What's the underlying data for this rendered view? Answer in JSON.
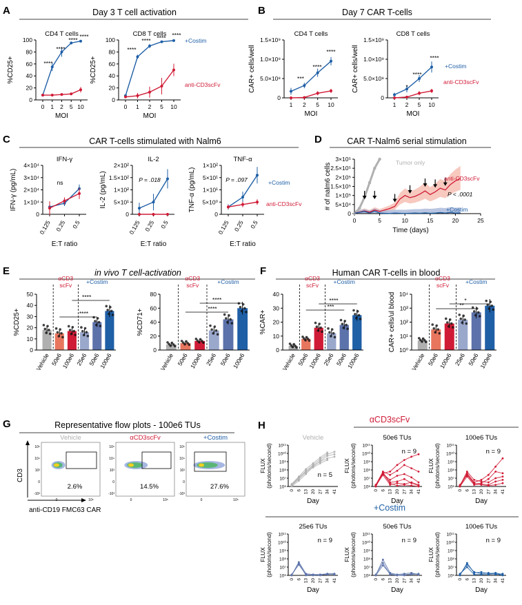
{
  "colors": {
    "blue": "#1f5fa6",
    "red": "#d01b36",
    "grey": "#b0b0b0",
    "light_red": "#f4b7aa",
    "light_blue": "#a7b6d8",
    "salmon": "#e8765f",
    "slate": "#9aa8cc",
    "mid_blue": "#5c72aa",
    "black": "#000000"
  },
  "panels": {
    "A": {
      "label": "A",
      "title": "Day 3 T cell activation"
    },
    "B": {
      "label": "B",
      "title": "Day 7 CAR T-cells"
    },
    "C": {
      "label": "C",
      "title": "CAR T-cells stimulated with Nalm6"
    },
    "D": {
      "label": "D",
      "title": "CAR T-Nalm6 serial stimulation"
    },
    "E": {
      "label": "E",
      "title": "in vivo T cell-activation"
    },
    "F": {
      "label": "F",
      "title": "Human CAR T-cells in blood"
    },
    "G": {
      "label": "G",
      "title": "Representative flow plots - 100e6 TUs"
    },
    "H": {
      "label": "H",
      "title_red": "αCD3scFv",
      "title_blue": "+Costim"
    }
  },
  "chart_data": [
    {
      "id": "A1",
      "type": "line",
      "title": "CD4 T cells",
      "xlabel": "MOI",
      "ylabel": "%CD25+",
      "x": [
        0,
        1,
        2,
        5,
        10
      ],
      "xticks": [
        "0",
        "1",
        "2",
        "5",
        "10"
      ],
      "ylim": [
        0,
        100
      ],
      "yticks": [
        "0",
        "20",
        "40",
        "60",
        "80",
        "100"
      ],
      "series": [
        {
          "name": "+Costim",
          "values": [
            8,
            55,
            80,
            95,
            98
          ]
        },
        {
          "name": "anti-CD3scFv",
          "values": [
            8,
            8,
            9,
            10,
            17
          ]
        }
      ],
      "annotations": [
        "****",
        "****",
        "****",
        "****"
      ]
    },
    {
      "id": "A2",
      "type": "line",
      "title": "CD8 T cells",
      "xlabel": "MOI",
      "ylabel": "%CD25+",
      "x": [
        0,
        1,
        2,
        5,
        10
      ],
      "xticks": [
        "0",
        "1",
        "2",
        "5",
        "10"
      ],
      "ylim": [
        0,
        100
      ],
      "yticks": [
        "0",
        "20",
        "40",
        "60",
        "80",
        "100"
      ],
      "series": [
        {
          "name": "+Costim",
          "values": [
            7,
            72,
            90,
            97,
            99
          ]
        },
        {
          "name": "anti-CD3scFv",
          "values": [
            5,
            7,
            13,
            23,
            50
          ]
        }
      ],
      "annotations": [
        "****",
        "****",
        "****",
        "****"
      ],
      "legend": [
        "+Costim",
        "anti-CD3scFv"
      ]
    },
    {
      "id": "B1",
      "type": "line",
      "title": "CD4 T cells",
      "xlabel": "MOI",
      "ylabel": "CAR+ cells/well",
      "x": [
        1,
        2,
        5,
        10
      ],
      "xticks": [
        "1",
        "2",
        "5",
        "10"
      ],
      "ylim": [
        0,
        1500000000
      ],
      "yticks": [
        "0",
        "5.0×10⁸",
        "1.0×10⁹",
        "1.5×10⁹"
      ],
      "series": [
        {
          "name": "+Costim",
          "values": [
            170000000,
            320000000,
            650000000,
            950000000
          ]
        },
        {
          "name": "anti-CD3scFv",
          "values": [
            0,
            10000000,
            120000000,
            180000000
          ]
        }
      ],
      "annotations": [
        "***",
        "****",
        "****"
      ]
    },
    {
      "id": "B2",
      "type": "line",
      "title": "CD8 T cells",
      "xlabel": "MOI",
      "ylabel": "CAR+ cells/well",
      "x": [
        1,
        2,
        5,
        10
      ],
      "xticks": [
        "1",
        "2",
        "5",
        "10"
      ],
      "ylim": [
        0,
        1500000000
      ],
      "yticks": [
        "0",
        "5.0×10⁸",
        "1.0×10⁹",
        "1.5×10⁹"
      ],
      "series": [
        {
          "name": "+Costim",
          "values": [
            80000000,
            230000000,
            500000000,
            800000000
          ]
        },
        {
          "name": "anti-CD3scFv",
          "values": [
            0,
            20000000,
            120000000,
            180000000
          ]
        }
      ],
      "annotations": [
        "*",
        "****",
        "****"
      ],
      "legend": [
        "+Costim",
        "anti-CD3scFv"
      ]
    },
    {
      "id": "C1",
      "type": "line",
      "title": "IFN-γ",
      "xlabel": "E:T ratio",
      "ylabel": "IFN-γ (pg/mL)",
      "x": [
        0.125,
        0.25,
        0.5
      ],
      "xticks": [
        "0.125",
        "0.25",
        "0.5"
      ],
      "ylim": [
        0,
        40000
      ],
      "yticks": [
        "0",
        "1×10⁴",
        "2×10⁴",
        "3×10⁴",
        "4×10⁴"
      ],
      "series": [
        {
          "name": "+Costim",
          "values": [
            6000,
            9000,
            21000
          ]
        },
        {
          "name": "anti-CD3scFv",
          "values": [
            5000,
            11000,
            17000
          ]
        }
      ],
      "annotations": [
        "ns"
      ]
    },
    {
      "id": "C2",
      "type": "line",
      "title": "IL-2",
      "xlabel": "E:T ratio",
      "ylabel": "IL-2 (pg/mL)",
      "x": [
        0.125,
        0.25,
        0.5
      ],
      "xticks": [
        "0.125",
        "0.25",
        "0.5"
      ],
      "ylim": [
        0,
        200
      ],
      "yticks": [
        "0",
        "5×10¹",
        "1×10²",
        "1.5×10²",
        "2×10²"
      ],
      "series": [
        {
          "name": "+Costim",
          "values": [
            25,
            50,
            145
          ]
        },
        {
          "name": "anti-CD3scFv",
          "values": [
            0,
            0,
            0
          ]
        }
      ],
      "annotations": [
        "P = .018"
      ]
    },
    {
      "id": "C3",
      "type": "line",
      "title": "TNF-α",
      "xlabel": "E:T ratio",
      "ylabel": "TNF-α (pg/mL)",
      "x": [
        0.125,
        0.25,
        0.5
      ],
      "xticks": [
        "0.125",
        "0.25",
        "0.5"
      ],
      "ylim": [
        0,
        100
      ],
      "yticks": [
        "0",
        "5×10⁰",
        "1×10¹",
        "5×10¹",
        "1×10²"
      ],
      "series": [
        {
          "name": "+Costim",
          "values": [
            15,
            35,
            80
          ]
        },
        {
          "name": "anti-CD3scFv",
          "values": [
            15,
            20,
            25
          ]
        }
      ],
      "annotations": [
        "P = .097"
      ],
      "legend": [
        "+Costim",
        "anti-CD3scFv"
      ]
    },
    {
      "id": "D",
      "type": "line",
      "xlabel": "Time (days)",
      "ylabel": "# of nalm6 cells",
      "xticks": [
        "0",
        "5",
        "10",
        "15",
        "20",
        "25"
      ],
      "ylim": [
        0,
        300000
      ],
      "yticks": [
        "0",
        "5×10⁴",
        "1×10⁵",
        "1.5×10⁵",
        "2×10⁵",
        "2.5×10⁵",
        "3×10⁵"
      ],
      "series": [
        {
          "name": "Tumor only",
          "x": [
            0,
            1,
            2,
            3,
            4,
            5
          ],
          "values": [
            0,
            30000,
            90000,
            170000,
            250000,
            300000
          ]
        },
        {
          "name": "anti-CD3scFv",
          "x": [
            0,
            2,
            3,
            4,
            5,
            6,
            7,
            8,
            9,
            10,
            11,
            12,
            13,
            14,
            15,
            16,
            17,
            18,
            19,
            20,
            21
          ],
          "values": [
            2000,
            15000,
            8000,
            20000,
            12000,
            20000,
            28000,
            40000,
            80000,
            100000,
            88000,
            95000,
            108000,
            125000,
            105000,
            120000,
            140000,
            130000,
            160000,
            180000,
            195000
          ]
        },
        {
          "name": "+Costim",
          "x": [
            0,
            2,
            3,
            4,
            5,
            6,
            7,
            8,
            9,
            10,
            11,
            12,
            13,
            14,
            15,
            16,
            17,
            18,
            19,
            20,
            21
          ],
          "values": [
            2000,
            12000,
            3000,
            14000,
            3000,
            2000,
            1000,
            3000,
            2000,
            1000,
            2000,
            3000,
            2000,
            4000,
            2000,
            3000,
            6000,
            3000,
            7000,
            3000,
            4000
          ]
        }
      ],
      "arrows_at_days": [
        2,
        4,
        8,
        11,
        14,
        16,
        18
      ],
      "annotations": [
        "Tumor only",
        "anti-CD3scFv",
        "P < .0001",
        "+Costim"
      ]
    },
    {
      "id": "E1",
      "type": "bar",
      "ylabel": "%CD25+",
      "categories": [
        "Vehicle",
        "50e6",
        "100e6",
        "25e6",
        "50e6",
        "100e6"
      ],
      "values": [
        18,
        15,
        17,
        16,
        25,
        35
      ],
      "ylim": [
        0,
        50
      ],
      "yticks": [
        "0",
        "10",
        "20",
        "30",
        "40",
        "50"
      ],
      "group_labels": [
        "αCD3",
        "scFv",
        "+Costim"
      ],
      "annotations": [
        "****",
        "****"
      ]
    },
    {
      "id": "E2",
      "type": "bar",
      "ylabel": "%CD71+",
      "categories": [
        "Vehicle",
        "50e6",
        "100e6",
        "25e6",
        "50e6",
        "100e6"
      ],
      "values": [
        8,
        10,
        13,
        28,
        44,
        60
      ],
      "ylim": [
        0,
        80
      ],
      "yticks": [
        "0",
        "20",
        "40",
        "60",
        "80"
      ],
      "group_labels": [
        "αCD3",
        "scFv",
        "+Costim"
      ],
      "annotations": [
        "****",
        "****"
      ]
    },
    {
      "id": "F1",
      "type": "bar",
      "ylabel": "%CAR+",
      "categories": [
        "Vehicle",
        "50e6",
        "100e6",
        "25e6",
        "50e6",
        "100e6"
      ],
      "values": [
        3,
        8,
        16,
        12,
        18,
        25
      ],
      "ylim": [
        0,
        40
      ],
      "yticks": [
        "0",
        "10",
        "20",
        "30",
        "40"
      ],
      "group_labels": [
        "αCD3",
        "scFv",
        "+Costim"
      ],
      "annotations": [
        "****",
        "***"
      ]
    },
    {
      "id": "F2",
      "type": "bar",
      "ylabel": "CAR+ cells/ul blood",
      "scale": "log",
      "categories": [
        "Vehicle",
        "50e6",
        "100e6",
        "25e6",
        "50e6",
        "100e6"
      ],
      "values": [
        5,
        30,
        80,
        150,
        500,
        1500
      ],
      "ylim": [
        1,
        10000
      ],
      "yticks": [
        "10⁰",
        "10¹",
        "10²",
        "10³",
        "10⁴"
      ],
      "group_labels": [
        "αCD3",
        "scFv",
        "+Costim"
      ],
      "annotations": [
        "*",
        "**"
      ]
    },
    {
      "id": "G",
      "type": "scatter",
      "ylabel": "CD3",
      "xlabel": "anti-CD19 FMC63 CAR",
      "plots": [
        {
          "label": "Vehicle",
          "gate_value": "2.6%"
        },
        {
          "label": "αCD3scFv",
          "gate_value": "14.5%"
        },
        {
          "label": "+Costim",
          "gate_value": "27.6%"
        }
      ],
      "ticks": [
        "10⁵",
        "10⁴",
        "10³",
        "0",
        "-10³"
      ],
      "xticks": [
        "0",
        "10⁵"
      ]
    },
    {
      "id": "H",
      "type": "line",
      "ylabel": "FLUX (photons/second)",
      "xlabel": "Day",
      "x": [
        0,
        6,
        13,
        20,
        27,
        34,
        41
      ],
      "xticks": [
        "0",
        "6",
        "13",
        "20",
        "27",
        "34",
        "41"
      ],
      "yticks": [
        "10⁶",
        "10⁷",
        "10⁸",
        "10⁹",
        "10¹⁰",
        "10¹¹"
      ],
      "subplots": [
        {
          "title": "Vehicle",
          "n": "n = 5",
          "series": [
            [
              6.2,
              7.0,
              7.9,
              8.6,
              9.3,
              9.9,
              10.2
            ],
            [
              6.0,
              6.7,
              7.5,
              8.4,
              9.1,
              9.7,
              9.9
            ],
            [
              6.3,
              7.2,
              8.1,
              8.8,
              9.5,
              10.1
            ],
            [
              6.1,
              6.9,
              7.7,
              8.5,
              9.0,
              9.4,
              9.6
            ],
            [
              6.2,
              7.1,
              7.8,
              8.3,
              8.8,
              9.2
            ]
          ]
        },
        {
          "title": "50e6 TUs",
          "n": "n = 9",
          "series": [
            [
              6.0,
              7.6,
              7.8,
              8.6,
              9.2,
              9.6,
              9.9
            ],
            [
              6.2,
              7.8,
              7.4,
              7.9,
              8.6,
              8.2,
              7.8
            ],
            [
              6.1,
              7.5,
              6.8,
              7.3,
              7.5,
              7.1,
              6.5
            ],
            [
              6.0,
              7.7,
              6.5,
              6.6,
              6.9,
              6.4,
              6.1
            ],
            [
              6.1,
              7.4,
              6.2,
              6.4,
              6.3,
              6.5,
              6.2
            ],
            [
              6.2,
              7.6,
              6.4,
              6.1,
              6.2,
              6.1,
              6.0
            ]
          ]
        },
        {
          "title": "100e6  TUs",
          "n": "n = 9",
          "series": [
            [
              6.0,
              7.6,
              6.5,
              6.8,
              7.4,
              8.4,
              9.4
            ],
            [
              6.2,
              7.4,
              6.3,
              6.4,
              6.9,
              7.8,
              7.6
            ],
            [
              6.1,
              7.8,
              6.8,
              6.6,
              6.5,
              7.0,
              7.2
            ],
            [
              6.0,
              7.2,
              6.2,
              6.3,
              6.2,
              6.6,
              6.8
            ],
            [
              6.1,
              7.5,
              6.4,
              6.2,
              6.1,
              6.2,
              6.4
            ]
          ]
        },
        {
          "title": "25e6 TUs",
          "n": "n = 9",
          "series": [
            [
              6.0,
              7.5,
              6.0,
              6.1,
              6.1,
              6.2,
              6.2
            ],
            [
              6.1,
              7.3,
              6.1,
              6.0,
              6.1,
              6.1,
              6.2
            ],
            [
              6.0,
              7.6,
              6.2,
              6.1,
              6.0,
              6.2,
              6.1
            ]
          ]
        },
        {
          "title": "50e6 TUs",
          "n": "n = 9",
          "series": [
            [
              6.0,
              7.9,
              6.3,
              6.1,
              6.2,
              6.3,
              6.1
            ],
            [
              6.1,
              7.5,
              6.1,
              6.0,
              6.1,
              6.1,
              6.2
            ],
            [
              6.0,
              7.2,
              6.2,
              6.0,
              6.0,
              6.2,
              6.1
            ]
          ]
        },
        {
          "title": "100e6 TUs",
          "n": "n = 9",
          "series": [
            [
              6.0,
              7.5,
              6.3,
              6.4,
              6.2,
              6.3,
              6.1
            ],
            [
              6.1,
              7.3,
              6.4,
              6.2,
              6.3,
              6.1,
              6.2
            ],
            [
              6.2,
              7.0,
              6.1,
              6.1,
              6.1,
              6.2,
              6.0
            ]
          ]
        }
      ]
    }
  ]
}
